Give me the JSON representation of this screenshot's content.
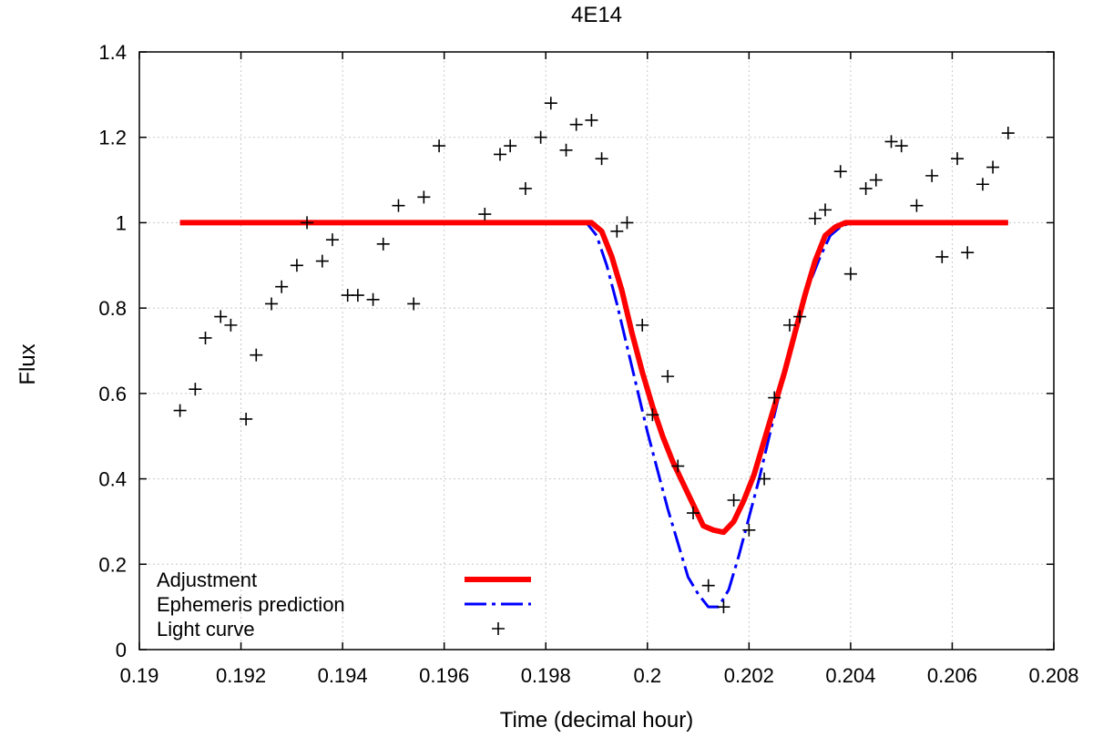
{
  "chart_data": {
    "type": "line",
    "title": "4E14",
    "xlabel": "Time (decimal hour)",
    "ylabel": "Flux",
    "xlim": [
      0.19,
      0.208
    ],
    "ylim": [
      0,
      1.4
    ],
    "grid": true,
    "legend_position": "bottom-left",
    "x_ticks": [
      0.19,
      0.192,
      0.194,
      0.196,
      0.198,
      0.2,
      0.202,
      0.204,
      0.206,
      0.208
    ],
    "x_tick_labels": [
      "0.19",
      "0.192",
      "0.194",
      "0.196",
      "0.198",
      "0.2",
      "0.202",
      "0.204",
      "0.206",
      "0.208"
    ],
    "y_ticks": [
      0,
      0.2,
      0.4,
      0.6,
      0.8,
      1,
      1.2,
      1.4
    ],
    "y_tick_labels": [
      "0",
      "0.2",
      "0.4",
      "0.6",
      "0.8",
      "1",
      "1.2",
      "1.4"
    ],
    "series": [
      {
        "name": "Adjustment",
        "style": "thick-solid",
        "color": "#ff0000",
        "x": [
          0.1908,
          0.1989,
          0.1991,
          0.1993,
          0.1995,
          0.1997,
          0.1999,
          0.2001,
          0.2003,
          0.2005,
          0.2007,
          0.2009,
          0.2011,
          0.2013,
          0.2015,
          0.2017,
          0.2019,
          0.2021,
          0.2023,
          0.2025,
          0.2027,
          0.2029,
          0.2031,
          0.2033,
          0.2035,
          0.2037,
          0.2039,
          0.2041,
          0.2071
        ],
        "y": [
          1.0,
          1.0,
          0.98,
          0.92,
          0.84,
          0.74,
          0.65,
          0.57,
          0.5,
          0.44,
          0.39,
          0.34,
          0.29,
          0.28,
          0.275,
          0.3,
          0.35,
          0.41,
          0.49,
          0.57,
          0.65,
          0.74,
          0.83,
          0.91,
          0.97,
          0.99,
          1.0,
          1.0,
          1.0
        ]
      },
      {
        "name": "Ephemeris prediction",
        "style": "dash-dot",
        "color": "#0000ff",
        "x": [
          0.1908,
          0.1988,
          0.199,
          0.1992,
          0.1994,
          0.1996,
          0.1998,
          0.2,
          0.2002,
          0.2004,
          0.2006,
          0.2008,
          0.201,
          0.2012,
          0.2014,
          0.2016,
          0.2018,
          0.202,
          0.2022,
          0.2024,
          0.2026,
          0.2028,
          0.203,
          0.2032,
          0.2034,
          0.2036,
          0.2038,
          0.204,
          0.2071
        ],
        "y": [
          1.0,
          1.0,
          0.97,
          0.9,
          0.81,
          0.71,
          0.61,
          0.51,
          0.42,
          0.33,
          0.25,
          0.17,
          0.13,
          0.1,
          0.1,
          0.14,
          0.22,
          0.31,
          0.4,
          0.5,
          0.6,
          0.69,
          0.78,
          0.86,
          0.92,
          0.97,
          0.99,
          1.0,
          1.0
        ]
      },
      {
        "name": "Light curve",
        "style": "points-plus",
        "color": "#000000",
        "x": [
          0.1908,
          0.1911,
          0.1913,
          0.1916,
          0.1918,
          0.1921,
          0.1923,
          0.1926,
          0.1928,
          0.1931,
          0.1933,
          0.1936,
          0.1938,
          0.1941,
          0.1943,
          0.1946,
          0.1948,
          0.1951,
          0.1954,
          0.1956,
          0.1959,
          0.1968,
          0.1971,
          0.1973,
          0.1976,
          0.1979,
          0.1981,
          0.1984,
          0.1986,
          0.1989,
          0.1991,
          0.1994,
          0.1996,
          0.1999,
          0.2001,
          0.2004,
          0.2006,
          0.2009,
          0.2012,
          0.2015,
          0.2017,
          0.202,
          0.2023,
          0.2025,
          0.2028,
          0.203,
          0.2033,
          0.2035,
          0.2038,
          0.204,
          0.2043,
          0.2045,
          0.2048,
          0.205,
          0.2053,
          0.2056,
          0.2058,
          0.2061,
          0.2063,
          0.2066,
          0.2068,
          0.2071
        ],
        "y": [
          0.56,
          0.61,
          0.73,
          0.78,
          0.76,
          0.54,
          0.69,
          0.81,
          0.85,
          0.9,
          1.0,
          0.91,
          0.96,
          0.83,
          0.83,
          0.82,
          0.95,
          1.04,
          0.81,
          1.06,
          1.18,
          1.02,
          1.16,
          1.18,
          1.08,
          1.2,
          1.28,
          1.17,
          1.23,
          1.24,
          1.15,
          0.98,
          1.0,
          0.76,
          0.55,
          0.64,
          0.43,
          0.32,
          0.15,
          0.1,
          0.35,
          0.28,
          0.4,
          0.59,
          0.76,
          0.78,
          1.01,
          1.03,
          1.12,
          0.88,
          1.08,
          1.1,
          1.19,
          1.18,
          1.04,
          1.11,
          0.92,
          1.15,
          0.93,
          1.09,
          1.13,
          1.21
        ]
      }
    ]
  }
}
